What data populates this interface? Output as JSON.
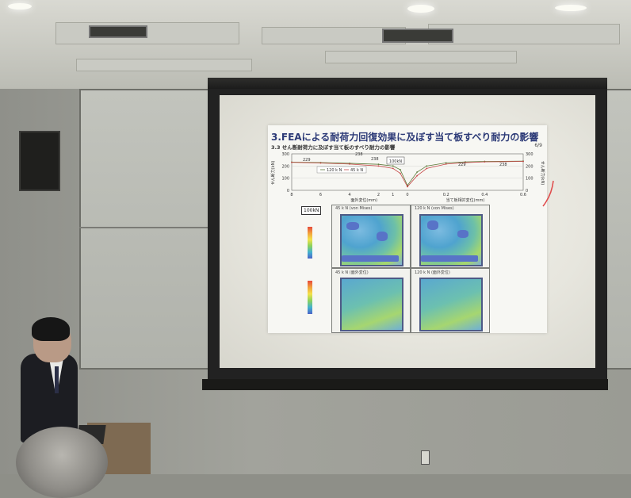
{
  "slide": {
    "title": "3.FEAによる耐荷力回復効果に及ぼす当て板すべり耐力の影響",
    "subtitle": "3.3 せん断耐荷力に及ぼす当て板のすべり耐力の影響",
    "page": "6/9"
  },
  "chart_data": {
    "type": "line",
    "left_ylabel": "せん断力(kN)",
    "right_ylabel": "せん断力(kN)",
    "left_xlabel": "面外変位(mm)",
    "right_xlabel": "当て板相対変位(mm)",
    "left_ylim": [
      0,
      300
    ],
    "right_ylim": [
      0,
      300
    ],
    "left_xticks": [
      "8",
      "6",
      "4",
      "2",
      "1",
      "0"
    ],
    "right_xticks": [
      "0",
      "0.2",
      "0.4",
      "0.6"
    ],
    "legend": [
      "120 k N",
      "45 k N"
    ],
    "annotation": "100kN",
    "data_labels": [
      "229",
      "238",
      "238",
      "229",
      "238"
    ],
    "series": [
      {
        "name": "120 k N",
        "left_x": [
          8,
          6,
          4,
          2,
          1,
          0.5,
          0
        ],
        "left_y": [
          232,
          228,
          222,
          214,
          200,
          170,
          40
        ],
        "right_x": [
          0,
          0.05,
          0.1,
          0.2,
          0.3,
          0.4,
          0.6
        ],
        "right_y": [
          40,
          150,
          200,
          226,
          234,
          238,
          240
        ]
      },
      {
        "name": "45 k N",
        "left_x": [
          8,
          6,
          4,
          2,
          1,
          0.5,
          0
        ],
        "left_y": [
          230,
          224,
          216,
          200,
          180,
          140,
          30
        ],
        "right_x": [
          0,
          0.05,
          0.1,
          0.2,
          0.3,
          0.4,
          0.6
        ],
        "right_y": [
          30,
          120,
          180,
          216,
          228,
          234,
          238
        ]
      }
    ]
  },
  "fea": {
    "load_label": "100kN",
    "panels": [
      {
        "label": "45 k N (von Mises)"
      },
      {
        "label": "120 k N (von Mises)"
      },
      {
        "label": "45 k N (面外変位)"
      },
      {
        "label": "120 k N (面外変位)"
      }
    ]
  },
  "colors": {
    "slide_title": "#2c3a77",
    "series_a": "#5d7a3a",
    "series_b": "#c74a4a"
  },
  "icons": {
    "speaker": "speaker-icon",
    "outlet": "outlet-icon"
  }
}
